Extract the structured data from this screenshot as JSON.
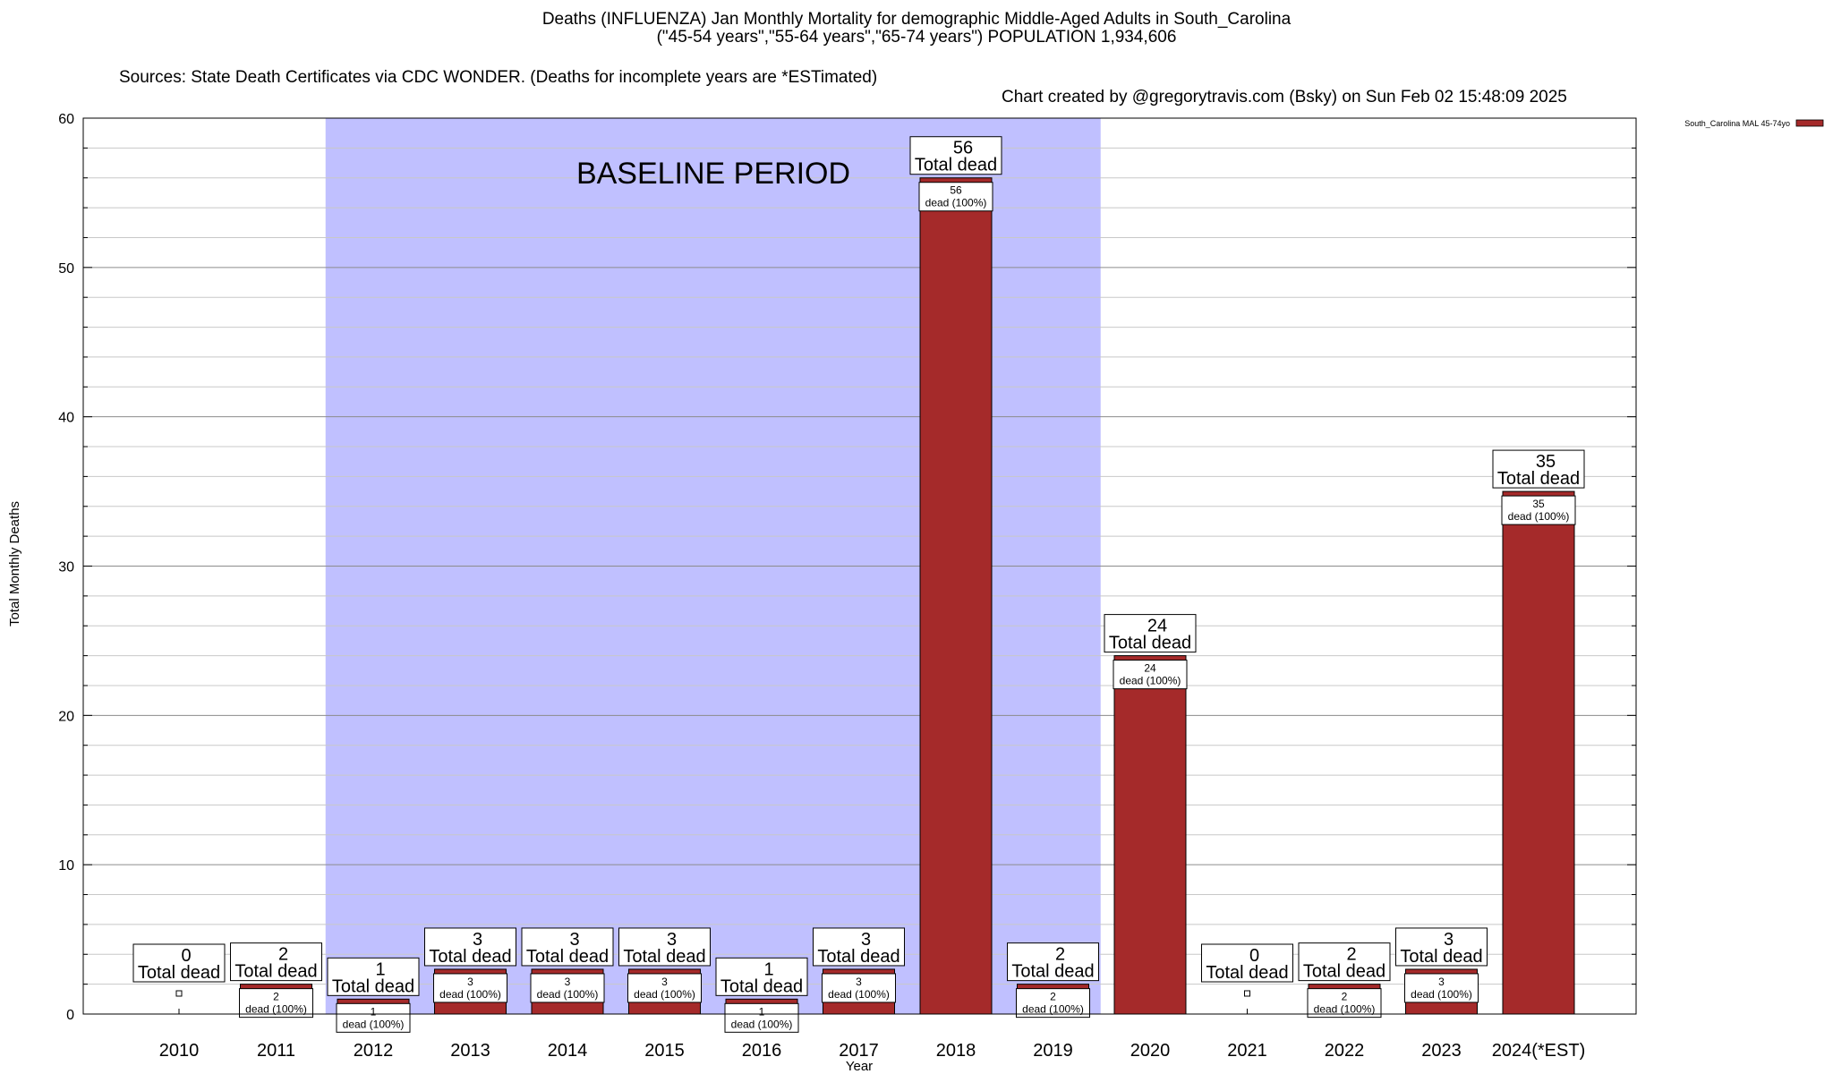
{
  "chart_data": {
    "type": "bar",
    "title": "Deaths (INFLUENZA) Jan Monthly Mortality for demographic Middle-Aged Adults in South_Carolina",
    "subtitle": "(\"45-54 years\",\"55-64 years\",\"65-74 years\") POPULATION 1,934,606",
    "sources": "Sources: State Death Certificates via CDC WONDER. (Deaths for incomplete years are *ESTimated)",
    "credit": "Chart created by @gregorytravis.com (Bsky) on Sun Feb 02 15:48:09 2025",
    "xlabel": "Year",
    "ylabel": "Total Monthly Deaths",
    "ylim": [
      0,
      60
    ],
    "yticks": [
      0,
      10,
      20,
      30,
      40,
      50,
      60
    ],
    "grid": true,
    "categories": [
      "2010",
      "2011",
      "2012",
      "2013",
      "2014",
      "2015",
      "2016",
      "2017",
      "2018",
      "2019",
      "2020",
      "2021",
      "2022",
      "2023",
      "2024(*EST)"
    ],
    "series": [
      {
        "name": "South_Carolina MAL 45-74yo",
        "color": "#a52a2a",
        "values": [
          0,
          2,
          1,
          3,
          3,
          3,
          1,
          3,
          56,
          2,
          24,
          0,
          2,
          3,
          35
        ]
      }
    ],
    "total_label_suffix": "Total dead",
    "inner_label_suffix": "dead (100%)",
    "baseline": {
      "label": "BASELINE PERIOD",
      "from": "2012",
      "to": "2019",
      "color": "#c0c0ff"
    },
    "legend_position": "top-right"
  }
}
